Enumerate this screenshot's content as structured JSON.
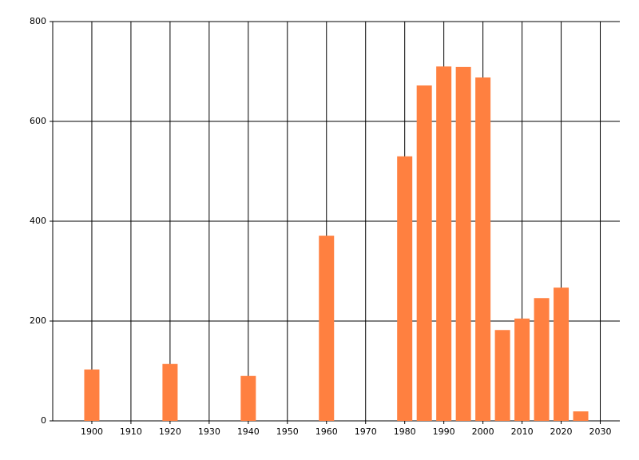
{
  "chart_data": {
    "type": "bar",
    "x": [
      1900,
      1920,
      1940,
      1960,
      1980,
      1985,
      1990,
      1995,
      2000,
      2005,
      2010,
      2015,
      2020,
      2025
    ],
    "values": [
      103,
      114,
      90,
      371,
      530,
      672,
      710,
      709,
      688,
      182,
      205,
      246,
      267,
      19
    ],
    "color": "#ff8040",
    "xlim": [
      1890,
      2035
    ],
    "xticks": [
      1900,
      1910,
      1920,
      1930,
      1940,
      1950,
      1960,
      1970,
      1980,
      1990,
      2000,
      2010,
      2020,
      2030
    ],
    "ylim": [
      0,
      800
    ],
    "yticks": [
      0,
      200,
      400,
      600,
      800
    ],
    "grid": true
  }
}
